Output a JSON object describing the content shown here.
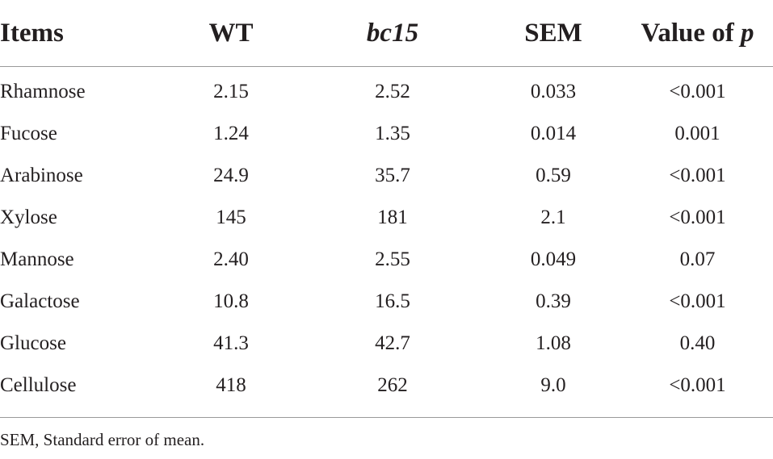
{
  "table": {
    "headers": {
      "items": "Items",
      "wt": "WT",
      "bc15": "bc15",
      "sem": "SEM",
      "p_value_prefix": "Value of ",
      "p_value_symbol": "p"
    },
    "rows": [
      {
        "item": "Rhamnose",
        "wt": "2.15",
        "bc15": "2.52",
        "sem": "0.033",
        "p": "<0.001"
      },
      {
        "item": "Fucose",
        "wt": "1.24",
        "bc15": "1.35",
        "sem": "0.014",
        "p": "0.001"
      },
      {
        "item": "Arabinose",
        "wt": "24.9",
        "bc15": "35.7",
        "sem": "0.59",
        "p": "<0.001"
      },
      {
        "item": "Xylose",
        "wt": "145",
        "bc15": "181",
        "sem": "2.1",
        "p": "<0.001"
      },
      {
        "item": "Mannose",
        "wt": "2.40",
        "bc15": "2.55",
        "sem": "0.049",
        "p": "0.07"
      },
      {
        "item": "Galactose",
        "wt": "10.8",
        "bc15": "16.5",
        "sem": "0.39",
        "p": "<0.001"
      },
      {
        "item": "Glucose",
        "wt": "41.3",
        "bc15": "42.7",
        "sem": "1.08",
        "p": "0.40"
      },
      {
        "item": "Cellulose",
        "wt": "418",
        "bc15": "262",
        "sem": "9.0",
        "p": "<0.001"
      }
    ]
  },
  "footnote": "SEM, Standard error of mean."
}
